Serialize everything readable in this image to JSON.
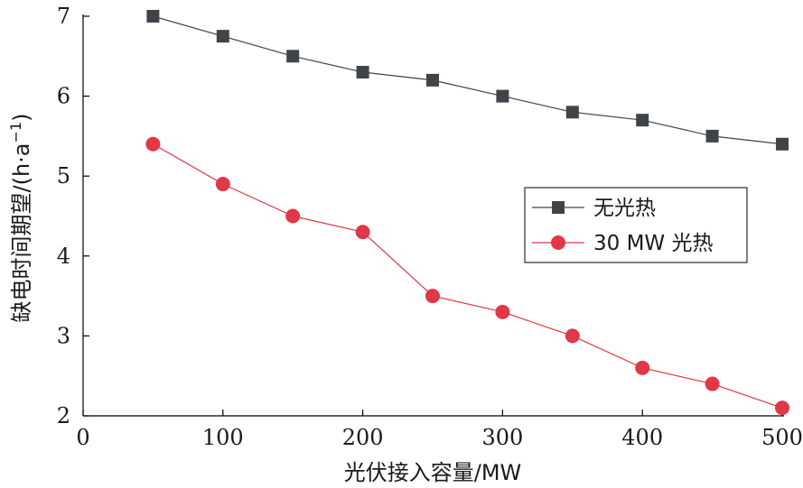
{
  "chart_data": {
    "type": "line",
    "xlabel": "光伏接入容量/MW",
    "ylabel": "缺电时间期望/(h·a",
    "ylabel_sup": "−1",
    "ylabel_close": ")",
    "xlim": [
      0,
      500
    ],
    "ylim": [
      2,
      7
    ],
    "xticks": [
      0,
      100,
      200,
      300,
      400,
      500
    ],
    "yticks": [
      2,
      3,
      4,
      5,
      6,
      7
    ],
    "grid": false,
    "legend_position": "center-right",
    "x": [
      50,
      100,
      150,
      200,
      250,
      300,
      350,
      400,
      450,
      500
    ],
    "series": [
      {
        "name": "无光热",
        "marker": "square",
        "color": "#404448",
        "values": [
          7.0,
          6.75,
          6.5,
          6.3,
          6.2,
          6.0,
          5.8,
          5.7,
          5.5,
          5.4
        ]
      },
      {
        "name": "30 MW 光热",
        "marker": "circle",
        "color": "#e03848",
        "values": [
          5.4,
          4.9,
          4.5,
          4.3,
          3.5,
          3.3,
          3.0,
          2.6,
          2.4,
          2.1
        ]
      }
    ]
  }
}
